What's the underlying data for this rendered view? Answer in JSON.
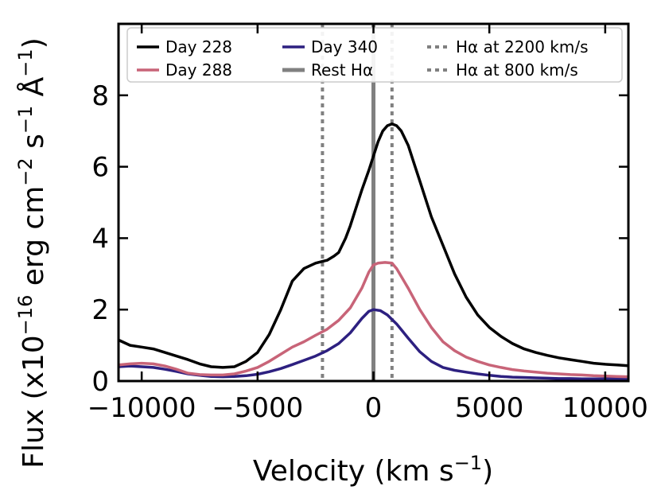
{
  "chart_data": {
    "type": "line",
    "title": "",
    "xlabel": "Velocity (km s",
    "xlabel_sup": "−1",
    "xlabel_end": ")",
    "ylabel_main": "Flux (x10",
    "ylabel_exp1": "−16",
    "ylabel_mid": " erg cm",
    "ylabel_exp2": "−2",
    "ylabel_mid2": " s",
    "ylabel_exp3": "−1",
    "ylabel_mid3": " Å",
    "ylabel_exp4": "−1",
    "ylabel_end": ")",
    "xlim": [
      -11000,
      11000
    ],
    "ylim": [
      0,
      10
    ],
    "xticks": [
      -10000,
      -5000,
      0,
      5000,
      10000
    ],
    "xtick_labels": [
      "−10000",
      "−5000",
      "0",
      "5000",
      "10000"
    ],
    "yticks": [
      0,
      2,
      4,
      6,
      8
    ],
    "ytick_labels": [
      "0",
      "2",
      "4",
      "6",
      "8"
    ],
    "legend_position": "top",
    "series": [
      {
        "name": "Day 228",
        "color": "#000000",
        "x": [
          -11000,
          -10500,
          -10000,
          -9500,
          -9000,
          -8500,
          -8000,
          -7500,
          -7000,
          -6500,
          -6000,
          -5500,
          -5000,
          -4500,
          -4000,
          -3500,
          -3000,
          -2500,
          -2200,
          -2000,
          -1700,
          -1500,
          -1200,
          -1000,
          -800,
          -500,
          -200,
          0,
          200,
          400,
          600,
          800,
          1000,
          1200,
          1500,
          1800,
          2000,
          2500,
          3000,
          3500,
          4000,
          4500,
          5000,
          5500,
          6000,
          6500,
          7000,
          7500,
          8000,
          8500,
          9000,
          9500,
          10000,
          10500,
          11000
        ],
        "values": [
          1.15,
          1.0,
          0.95,
          0.9,
          0.8,
          0.7,
          0.6,
          0.48,
          0.4,
          0.38,
          0.4,
          0.55,
          0.8,
          1.3,
          2.0,
          2.8,
          3.15,
          3.3,
          3.35,
          3.38,
          3.5,
          3.6,
          4.0,
          4.35,
          4.75,
          5.35,
          5.9,
          6.3,
          6.7,
          7.0,
          7.15,
          7.2,
          7.15,
          7.0,
          6.6,
          6.0,
          5.6,
          4.6,
          3.8,
          3.0,
          2.35,
          1.85,
          1.5,
          1.25,
          1.05,
          0.9,
          0.8,
          0.72,
          0.65,
          0.6,
          0.55,
          0.5,
          0.47,
          0.45,
          0.43
        ]
      },
      {
        "name": "Day 288",
        "color": "#c86478",
        "x": [
          -11000,
          -10500,
          -10000,
          -9500,
          -9000,
          -8500,
          -8000,
          -7500,
          -7000,
          -6500,
          -6000,
          -5500,
          -5000,
          -4500,
          -4000,
          -3500,
          -3000,
          -2500,
          -2000,
          -1500,
          -1000,
          -500,
          -200,
          0,
          200,
          500,
          800,
          1000,
          1500,
          2000,
          2500,
          3000,
          3500,
          4000,
          4500,
          5000,
          5500,
          6000,
          6500,
          7000,
          7500,
          8000,
          8500,
          9000,
          9500,
          10000,
          10500,
          11000
        ],
        "values": [
          0.45,
          0.48,
          0.5,
          0.48,
          0.42,
          0.33,
          0.22,
          0.18,
          0.17,
          0.17,
          0.2,
          0.28,
          0.38,
          0.55,
          0.75,
          0.95,
          1.1,
          1.28,
          1.45,
          1.7,
          2.05,
          2.6,
          3.05,
          3.25,
          3.3,
          3.32,
          3.3,
          3.15,
          2.6,
          2.0,
          1.5,
          1.1,
          0.85,
          0.67,
          0.55,
          0.45,
          0.38,
          0.32,
          0.28,
          0.25,
          0.22,
          0.2,
          0.18,
          0.17,
          0.15,
          0.14,
          0.13,
          0.12
        ]
      },
      {
        "name": "Day 340",
        "color": "#2d2080",
        "x": [
          -11000,
          -10500,
          -10000,
          -9500,
          -9000,
          -8500,
          -8000,
          -7500,
          -7000,
          -6500,
          -6000,
          -5500,
          -5000,
          -4500,
          -4000,
          -3500,
          -3000,
          -2500,
          -2000,
          -1500,
          -1000,
          -500,
          -200,
          0,
          300,
          600,
          1000,
          1500,
          2000,
          2500,
          3000,
          3500,
          4000,
          4500,
          5000,
          5500,
          6000,
          6500,
          7000,
          7500,
          8000,
          8500,
          9000,
          9500,
          10000,
          10500,
          11000
        ],
        "values": [
          0.4,
          0.42,
          0.4,
          0.38,
          0.33,
          0.27,
          0.2,
          0.16,
          0.13,
          0.12,
          0.13,
          0.15,
          0.19,
          0.26,
          0.35,
          0.46,
          0.58,
          0.7,
          0.85,
          1.05,
          1.35,
          1.75,
          1.95,
          2.0,
          1.97,
          1.85,
          1.6,
          1.2,
          0.82,
          0.55,
          0.38,
          0.3,
          0.25,
          0.2,
          0.16,
          0.13,
          0.11,
          0.1,
          0.09,
          0.08,
          0.07,
          0.07,
          0.06,
          0.06,
          0.06,
          0.06,
          0.06
        ]
      },
      {
        "name": "Rest Hα",
        "color": "#808080",
        "style": "solid",
        "vline_x": 0
      },
      {
        "name": "Hα at 2200 km/s",
        "color": "#808080",
        "style": "dotted",
        "vline_x": -2200
      },
      {
        "name": "Hα at 800 km/s",
        "color": "#808080",
        "style": "dotted",
        "vline_x": 800
      }
    ]
  }
}
